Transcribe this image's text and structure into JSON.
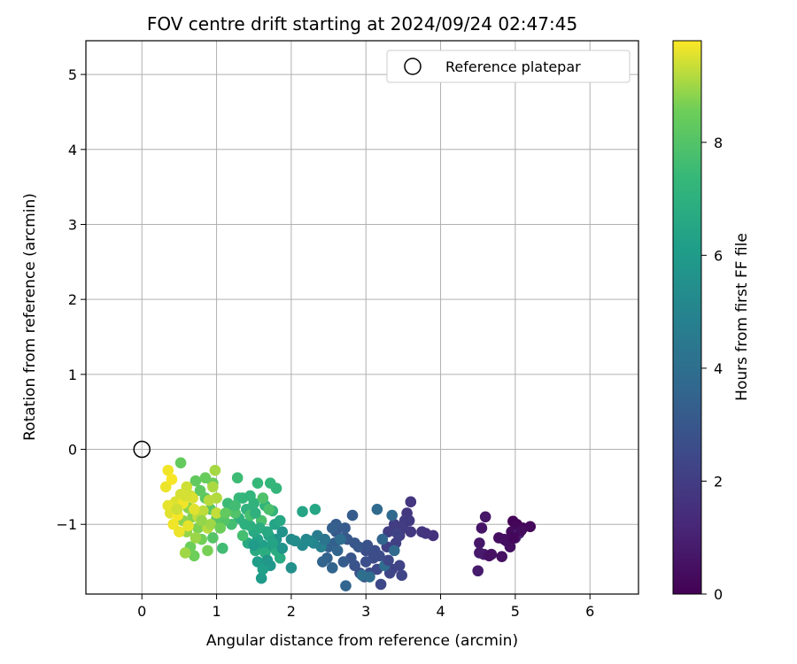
{
  "chart_data": {
    "type": "scatter",
    "title": "FOV centre drift starting at 2024/09/24 02:47:45",
    "xlabel": "Angular distance from reference (arcmin)",
    "ylabel": "Rotation from reference (arcmin)",
    "xlim": [
      -0.75,
      6.65
    ],
    "ylim": [
      -1.93,
      5.45
    ],
    "xticks": [
      "0",
      "1",
      "2",
      "3",
      "4",
      "5",
      "6"
    ],
    "yticks": [
      "−1",
      "0",
      "1",
      "2",
      "3",
      "4",
      "5"
    ],
    "grid": true,
    "colormap": "viridis",
    "colorbar": {
      "label": "Hours from first FF file",
      "range": [
        0,
        9.8
      ],
      "ticks": [
        "0",
        "2",
        "4",
        "6",
        "8"
      ]
    },
    "legend": {
      "position": "top-right",
      "entries": [
        {
          "label": "Reference platepar",
          "marker": "open-circle",
          "x": 0,
          "y": 0
        }
      ]
    },
    "points": [
      [
        4.97,
        -0.96,
        0.1
      ],
      [
        5.02,
        -1.0,
        0.15
      ],
      [
        5.1,
        -1.05,
        0.2
      ],
      [
        5.2,
        -1.03,
        0.25
      ],
      [
        4.95,
        -1.1,
        0.3
      ],
      [
        4.88,
        -1.22,
        0.35
      ],
      [
        4.78,
        -1.18,
        0.4
      ],
      [
        4.93,
        -1.3,
        0.45
      ],
      [
        4.82,
        -1.43,
        0.5
      ],
      [
        4.68,
        -1.4,
        0.55
      ],
      [
        4.55,
        -1.05,
        0.6
      ],
      [
        4.6,
        -0.9,
        0.65
      ],
      [
        4.52,
        -1.25,
        0.7
      ],
      [
        4.52,
        -1.38,
        0.75
      ],
      [
        4.58,
        -1.4,
        0.8
      ],
      [
        4.5,
        -1.62,
        0.85
      ],
      [
        5.0,
        -1.18,
        0.9
      ],
      [
        5.05,
        -1.12,
        1.0
      ],
      [
        3.9,
        -1.15,
        1.6
      ],
      [
        3.8,
        -1.12,
        1.7
      ],
      [
        3.6,
        -0.7,
        1.75
      ],
      [
        3.55,
        -0.85,
        1.8
      ],
      [
        3.6,
        -1.1,
        1.85
      ],
      [
        3.5,
        -1.05,
        1.9
      ],
      [
        3.45,
        -1.15,
        1.95
      ],
      [
        3.52,
        -0.95,
        2.0
      ],
      [
        3.38,
        -1.0,
        2.0
      ],
      [
        3.3,
        -1.1,
        2.05
      ],
      [
        3.4,
        -1.25,
        2.1
      ],
      [
        3.28,
        -1.3,
        2.15
      ],
      [
        3.35,
        -1.6,
        2.2
      ],
      [
        3.45,
        -1.55,
        2.25
      ],
      [
        3.48,
        -1.68,
        2.3
      ],
      [
        3.32,
        -1.65,
        2.35
      ],
      [
        3.2,
        -1.8,
        2.4
      ],
      [
        3.15,
        -1.6,
        2.45
      ],
      [
        3.05,
        -1.65,
        2.5
      ],
      [
        3.1,
        -1.45,
        2.55
      ],
      [
        3.0,
        -1.35,
        2.6
      ],
      [
        3.12,
        -1.35,
        2.65
      ],
      [
        3.0,
        -1.5,
        2.7
      ],
      [
        2.92,
        -1.65,
        2.75
      ],
      [
        2.98,
        -1.7,
        2.8
      ],
      [
        2.85,
        -1.55,
        2.85
      ],
      [
        2.8,
        -1.45,
        2.9
      ],
      [
        2.85,
        -1.25,
        2.95
      ],
      [
        2.75,
        -1.2,
        3.0
      ],
      [
        2.72,
        -1.18,
        3.05
      ],
      [
        2.6,
        -1.1,
        3.1
      ],
      [
        2.72,
        -1.05,
        3.15
      ],
      [
        2.82,
        -0.88,
        3.2
      ],
      [
        2.6,
        -1.0,
        3.25
      ],
      [
        2.55,
        -1.05,
        3.3
      ],
      [
        2.58,
        -1.25,
        3.35
      ],
      [
        2.5,
        -1.3,
        3.4
      ],
      [
        2.48,
        -1.45,
        3.45
      ],
      [
        2.42,
        -1.5,
        3.5
      ],
      [
        2.55,
        -1.58,
        3.55
      ],
      [
        2.73,
        -1.82,
        3.6
      ],
      [
        3.22,
        -1.2,
        3.65
      ],
      [
        3.35,
        -0.88,
        3.7
      ],
      [
        3.15,
        -0.8,
        3.75
      ],
      [
        3.38,
        -1.35,
        3.8
      ],
      [
        3.25,
        -1.55,
        3.85
      ],
      [
        3.05,
        -1.7,
        3.9
      ],
      [
        2.66,
        -1.2,
        3.95
      ],
      [
        2.95,
        -1.68,
        4.0
      ],
      [
        2.35,
        -1.15,
        4.6
      ],
      [
        2.4,
        -1.3,
        4.8
      ],
      [
        2.3,
        -1.25,
        5.0
      ],
      [
        2.2,
        -1.2,
        5.1
      ],
      [
        2.15,
        -1.28,
        5.2
      ],
      [
        2.0,
        -1.2,
        5.3
      ],
      [
        2.05,
        -1.22,
        5.4
      ],
      [
        2.0,
        -1.58,
        5.5
      ],
      [
        1.88,
        -1.1,
        5.6
      ],
      [
        1.8,
        -1.2,
        5.7
      ],
      [
        1.75,
        -1.3,
        5.8
      ],
      [
        1.72,
        -1.55,
        5.9
      ],
      [
        1.6,
        -1.72,
        6.0
      ],
      [
        1.55,
        -1.5,
        6.1
      ],
      [
        1.62,
        -1.28,
        6.2
      ],
      [
        1.55,
        -1.2,
        6.3
      ],
      [
        1.7,
        -1.15,
        6.35
      ],
      [
        1.78,
        -1.0,
        6.4
      ],
      [
        2.15,
        -0.83,
        6.45
      ],
      [
        2.32,
        -0.8,
        6.5
      ],
      [
        1.85,
        -0.95,
        6.55
      ],
      [
        1.5,
        -1.1,
        6.6
      ],
      [
        1.42,
        -1.25,
        6.65
      ],
      [
        1.52,
        -1.35,
        6.7
      ],
      [
        1.85,
        -1.45,
        6.75
      ],
      [
        1.8,
        -1.35,
        6.8
      ],
      [
        1.65,
        -1.38,
        6.85
      ],
      [
        1.45,
        -1.02,
        6.9
      ],
      [
        1.38,
        -1.0,
        6.95
      ],
      [
        1.3,
        -0.92,
        7.0
      ],
      [
        1.4,
        -0.8,
        7.05
      ],
      [
        1.5,
        -0.72,
        7.1
      ],
      [
        1.65,
        -0.75,
        7.15
      ],
      [
        1.75,
        -0.82,
        7.2
      ],
      [
        1.8,
        -0.52,
        7.25
      ],
      [
        1.72,
        -0.45,
        7.3
      ],
      [
        1.55,
        -0.45,
        7.35
      ],
      [
        1.3,
        -0.65,
        7.4
      ],
      [
        1.22,
        -0.78,
        7.45
      ],
      [
        1.15,
        -0.72,
        7.5
      ],
      [
        1.28,
        -0.38,
        7.55
      ],
      [
        1.08,
        -1.32,
        7.6
      ],
      [
        1.2,
        -1.0,
        7.65
      ],
      [
        1.35,
        -1.15,
        7.7
      ],
      [
        1.45,
        -0.88,
        7.75
      ],
      [
        1.6,
        -0.95,
        7.8
      ],
      [
        1.7,
        -0.8,
        7.85
      ],
      [
        1.62,
        -0.65,
        7.9
      ],
      [
        1.25,
        -0.85,
        7.95
      ],
      [
        1.1,
        -0.95,
        8.0
      ],
      [
        0.95,
        -1.18,
        8.05
      ],
      [
        1.0,
        -0.92,
        8.1
      ],
      [
        0.92,
        -0.8,
        8.15
      ],
      [
        0.85,
        -0.65,
        8.2
      ],
      [
        0.78,
        -0.55,
        8.25
      ],
      [
        0.72,
        -0.42,
        8.3
      ],
      [
        0.52,
        -0.18,
        8.35
      ],
      [
        0.95,
        -0.45,
        8.4
      ],
      [
        0.85,
        -0.38,
        8.45
      ],
      [
        0.65,
        -1.3,
        8.5
      ],
      [
        0.7,
        -1.42,
        8.55
      ],
      [
        0.8,
        -1.2,
        8.6
      ],
      [
        0.88,
        -1.35,
        8.65
      ],
      [
        0.75,
        -1.05,
        8.7
      ],
      [
        0.68,
        -0.9,
        8.75
      ],
      [
        0.62,
        -0.78,
        8.8
      ],
      [
        0.55,
        -0.95,
        8.85
      ],
      [
        0.6,
        -1.1,
        8.9
      ],
      [
        0.72,
        -1.18,
        8.95
      ],
      [
        0.58,
        -1.38,
        9.0
      ],
      [
        0.98,
        -0.28,
        9.05
      ],
      [
        0.95,
        -0.5,
        9.1
      ],
      [
        1.0,
        -0.65,
        9.15
      ],
      [
        0.9,
        -0.68,
        9.2
      ],
      [
        0.82,
        -0.82,
        9.25
      ],
      [
        0.75,
        -0.9,
        9.3
      ],
      [
        0.65,
        -0.62,
        9.35
      ],
      [
        0.6,
        -0.5,
        9.4
      ],
      [
        0.52,
        -0.6,
        9.45
      ],
      [
        0.45,
        -0.7,
        9.5
      ],
      [
        0.38,
        -0.85,
        9.55
      ],
      [
        0.35,
        -0.75,
        9.6
      ],
      [
        0.32,
        -0.5,
        9.65
      ],
      [
        0.35,
        -0.28,
        9.7
      ],
      [
        0.4,
        -0.4,
        9.75
      ],
      [
        0.48,
        -0.88,
        9.75
      ],
      [
        0.55,
        -0.72,
        9.7
      ],
      [
        0.42,
        -1.0,
        9.7
      ],
      [
        0.5,
        -1.1,
        9.65
      ],
      [
        0.62,
        -1.02,
        9.6
      ],
      [
        0.7,
        -0.8,
        9.55
      ],
      [
        0.68,
        -0.65,
        9.5
      ],
      [
        0.58,
        -0.62,
        9.45
      ],
      [
        0.47,
        -0.8,
        9.4
      ],
      [
        1.0,
        -0.85,
        9.3
      ],
      [
        0.88,
        -1.05,
        9.2
      ],
      [
        0.92,
        -1.0,
        9.0
      ],
      [
        0.8,
        -0.95,
        8.9
      ],
      [
        1.05,
        -1.05,
        8.5
      ],
      [
        1.12,
        -0.85,
        8.3
      ],
      [
        1.25,
        -0.75,
        7.6
      ],
      [
        1.35,
        -0.65,
        7.3
      ],
      [
        1.45,
        -0.62,
        7.2
      ],
      [
        1.52,
        -0.85,
        7.0
      ],
      [
        1.58,
        -1.05,
        6.8
      ],
      [
        1.68,
        -1.1,
        6.6
      ],
      [
        1.75,
        -1.25,
        6.4
      ],
      [
        1.62,
        -1.6,
        6.2
      ],
      [
        1.5,
        -1.28,
        6.0
      ],
      [
        1.68,
        -1.48,
        5.8
      ],
      [
        1.88,
        -1.32,
        5.7
      ],
      [
        2.25,
        -1.22,
        5.2
      ],
      [
        2.45,
        -1.2,
        4.3
      ],
      [
        2.62,
        -1.35,
        3.6
      ],
      [
        2.7,
        -1.5,
        3.2
      ],
      [
        2.9,
        -1.3,
        3.0
      ],
      [
        3.02,
        -1.28,
        2.8
      ],
      [
        3.18,
        -1.42,
        2.6
      ],
      [
        3.3,
        -1.48,
        2.4
      ],
      [
        3.42,
        -1.12,
        2.2
      ],
      [
        3.5,
        -1.02,
        2.0
      ],
      [
        3.58,
        -0.95,
        1.9
      ],
      [
        3.75,
        -1.1,
        1.7
      ],
      [
        4.65,
        -1.42,
        0.5
      ],
      [
        4.85,
        -1.2,
        0.4
      ],
      [
        5.08,
        -1.08,
        0.3
      ],
      [
        4.98,
        -1.18,
        0.2
      ]
    ]
  }
}
